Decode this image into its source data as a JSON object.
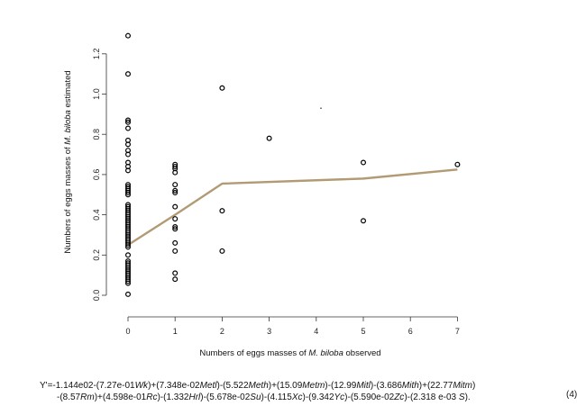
{
  "chart_data": {
    "type": "scatter",
    "xlabel_parts": [
      "Numbers of eggs masses of ",
      "M. biloba",
      "  observed"
    ],
    "ylabel_parts": [
      "Numbers of eggs masses of ",
      "M. biloba",
      " estimated"
    ],
    "xlim": [
      0,
      7
    ],
    "ylim": [
      0.0,
      1.3
    ],
    "xticks": [
      "0",
      "1",
      "2",
      "3",
      "4",
      "5",
      "6",
      "7"
    ],
    "yticks": [
      "0.0",
      "0.2",
      "0.4",
      "0.6",
      "0.8",
      "1.0",
      "1.2"
    ],
    "points": [
      [
        0,
        1.29
      ],
      [
        0,
        1.1
      ],
      [
        0,
        0.87
      ],
      [
        0,
        0.86
      ],
      [
        0,
        0.83
      ],
      [
        0,
        0.77
      ],
      [
        0,
        0.75
      ],
      [
        0,
        0.72
      ],
      [
        0,
        0.7
      ],
      [
        0,
        0.66
      ],
      [
        0,
        0.64
      ],
      [
        0,
        0.62
      ],
      [
        0,
        0.55
      ],
      [
        0,
        0.54
      ],
      [
        0,
        0.53
      ],
      [
        0,
        0.52
      ],
      [
        0,
        0.51
      ],
      [
        0,
        0.5
      ],
      [
        0,
        0.45
      ],
      [
        0,
        0.44
      ],
      [
        0,
        0.43
      ],
      [
        0,
        0.42
      ],
      [
        0,
        0.41
      ],
      [
        0,
        0.4
      ],
      [
        0,
        0.39
      ],
      [
        0,
        0.38
      ],
      [
        0,
        0.37
      ],
      [
        0,
        0.36
      ],
      [
        0,
        0.35
      ],
      [
        0,
        0.34
      ],
      [
        0,
        0.33
      ],
      [
        0,
        0.32
      ],
      [
        0,
        0.31
      ],
      [
        0,
        0.3
      ],
      [
        0,
        0.29
      ],
      [
        0,
        0.28
      ],
      [
        0,
        0.27
      ],
      [
        0,
        0.26
      ],
      [
        0,
        0.25
      ],
      [
        0,
        0.24
      ],
      [
        0,
        0.2
      ],
      [
        0,
        0.17
      ],
      [
        0,
        0.16
      ],
      [
        0,
        0.15
      ],
      [
        0,
        0.14
      ],
      [
        0,
        0.13
      ],
      [
        0,
        0.12
      ],
      [
        0,
        0.11
      ],
      [
        0,
        0.1
      ],
      [
        0,
        0.09
      ],
      [
        0,
        0.08
      ],
      [
        0,
        0.07
      ],
      [
        0,
        0.06
      ],
      [
        0,
        0.005
      ],
      [
        1,
        0.65
      ],
      [
        1,
        0.64
      ],
      [
        1,
        0.63
      ],
      [
        1,
        0.61
      ],
      [
        1,
        0.55
      ],
      [
        1,
        0.52
      ],
      [
        1,
        0.51
      ],
      [
        1,
        0.44
      ],
      [
        1,
        0.38
      ],
      [
        1,
        0.34
      ],
      [
        1,
        0.33
      ],
      [
        1,
        0.26
      ],
      [
        1,
        0.22
      ],
      [
        1,
        0.11
      ],
      [
        1,
        0.08
      ],
      [
        2,
        1.03
      ],
      [
        2,
        0.42
      ],
      [
        2,
        0.22
      ],
      [
        3,
        0.78
      ],
      [
        5,
        0.66
      ],
      [
        5,
        0.37
      ],
      [
        7,
        0.65
      ]
    ],
    "dot": [
      4.1,
      0.93
    ],
    "fit_line": {
      "color": "#b29b74",
      "x": [
        0,
        1,
        2,
        5,
        7
      ],
      "y": [
        0.25,
        0.4,
        0.555,
        0.58,
        0.625
      ]
    }
  },
  "equation": {
    "line1": [
      {
        "t": "Y'=-1.144e02-(7.27e-01"
      },
      {
        "t": "Wk",
        "i": true
      },
      {
        "t": ")+(7.348e-02"
      },
      {
        "t": "Metl",
        "i": true
      },
      {
        "t": ")-(5.522"
      },
      {
        "t": "Meth",
        "i": true
      },
      {
        "t": ")+(15.09"
      },
      {
        "t": "Metm",
        "i": true
      },
      {
        "t": ")-(12.99"
      },
      {
        "t": "Mitl",
        "i": true
      },
      {
        "t": ")-(3.686"
      },
      {
        "t": "Mith",
        "i": true
      },
      {
        "t": ")+(22.77"
      },
      {
        "t": "Mitm",
        "i": true
      },
      {
        "t": ")"
      }
    ],
    "line2": [
      {
        "t": "-(8.57"
      },
      {
        "t": "Rm",
        "i": true
      },
      {
        "t": ")+(4.598e-01"
      },
      {
        "t": "Rc",
        "i": true
      },
      {
        "t": ")-(1.332"
      },
      {
        "t": "Hrl",
        "i": true
      },
      {
        "t": ")-(5.678e-02"
      },
      {
        "t": "Su",
        "i": true
      },
      {
        "t": ")-(4.115"
      },
      {
        "t": "Xc",
        "i": true
      },
      {
        "t": ")-(9.342"
      },
      {
        "t": "Yc",
        "i": true
      },
      {
        "t": ")-(5.590e-02"
      },
      {
        "t": "Zc",
        "i": true
      },
      {
        "t": ")-(2.318 e-03 "
      },
      {
        "t": "S",
        "i": true
      },
      {
        "t": ")."
      }
    ],
    "number": "(4)"
  }
}
